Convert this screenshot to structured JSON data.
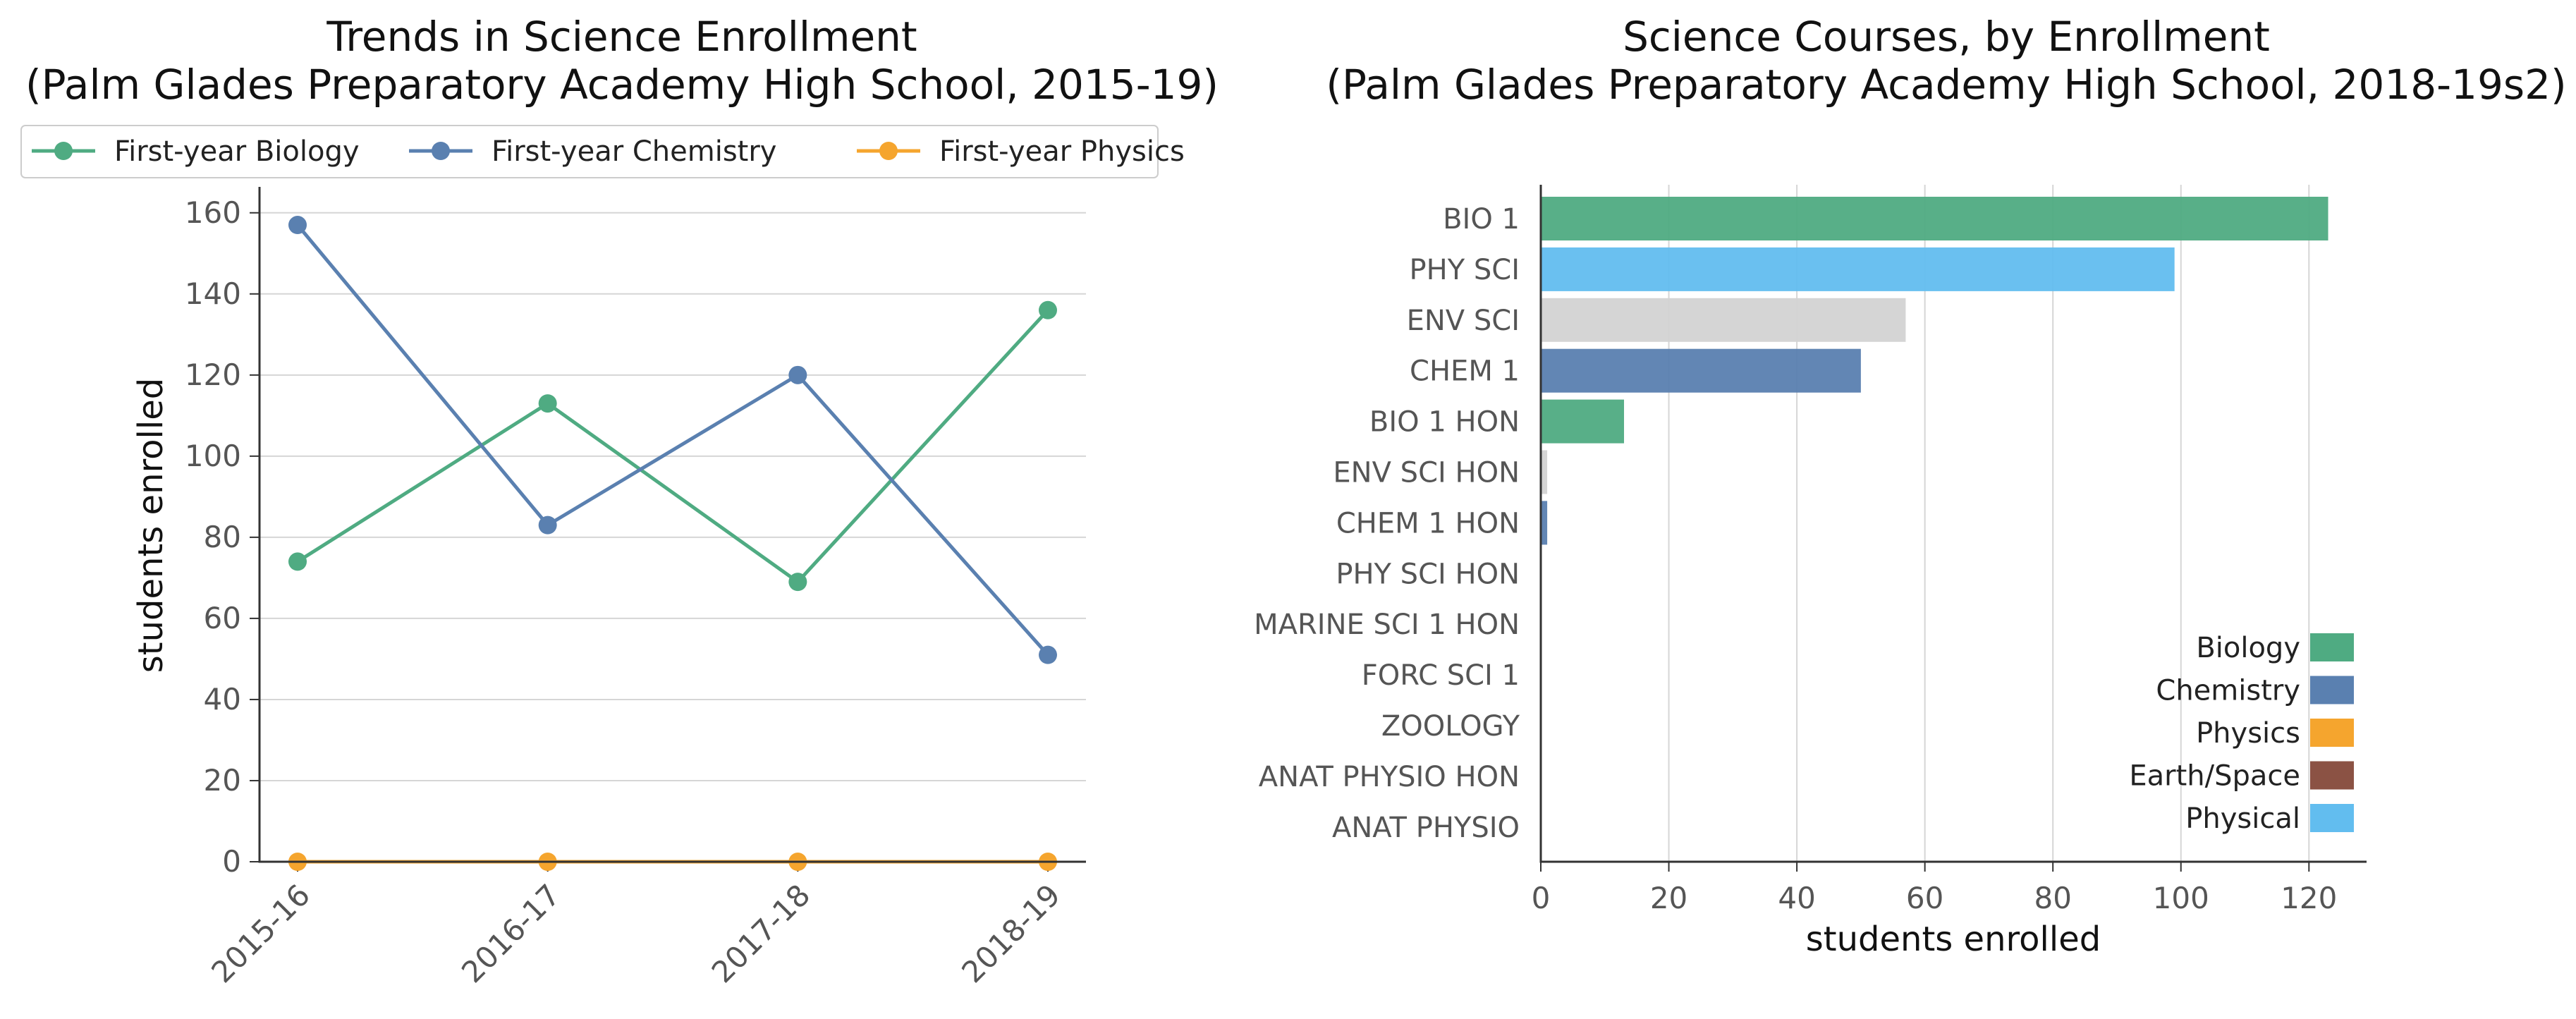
{
  "chart_data": [
    {
      "type": "line",
      "title": "Trends in Science Enrollment",
      "subtitle": "(Palm Glades Preparatory Academy High School, 2015-19)",
      "xlabel": "",
      "ylabel": "students enrolled",
      "categories": [
        "2015-16",
        "2016-17",
        "2017-18",
        "2018-19"
      ],
      "ylim": [
        0,
        165
      ],
      "yticks": [
        0,
        20,
        40,
        60,
        80,
        100,
        120,
        140,
        160
      ],
      "grid": "horizontal",
      "legend": "top",
      "series": [
        {
          "name": "First-year Biology",
          "color": "#4fab82",
          "values": [
            74,
            113,
            69,
            136
          ]
        },
        {
          "name": "First-year Chemistry",
          "color": "#5a80b0",
          "values": [
            157,
            83,
            120,
            51
          ]
        },
        {
          "name": "First-year Physics",
          "color": "#f5a52e",
          "values": [
            0,
            0,
            0,
            0
          ]
        }
      ]
    },
    {
      "type": "bar",
      "orientation": "horizontal",
      "title": "Science Courses, by Enrollment",
      "subtitle": "(Palm Glades Preparatory Academy High School, 2018-19s2)",
      "xlabel": "students enrolled",
      "ylabel": "",
      "xlim": [
        0,
        129
      ],
      "xticks": [
        0,
        20,
        40,
        60,
        80,
        100,
        120
      ],
      "grid": "vertical",
      "legend": "bottom-right",
      "categories": [
        "BIO 1",
        "PHY SCI",
        "ENV SCI",
        "CHEM 1",
        "BIO 1 HON",
        "ENV SCI HON",
        "CHEM 1 HON",
        "PHY SCI HON",
        "MARINE SCI 1 HON",
        "FORC SCI 1",
        "ZOOLOGY",
        "ANAT PHYSIO HON",
        "ANAT PHYSIO"
      ],
      "values": [
        123,
        99,
        57,
        50,
        13,
        1,
        1,
        0,
        0,
        0,
        0,
        0,
        0
      ],
      "colors": [
        "#4fab82",
        "#62bdef",
        "#d3d3d3",
        "#5a80b0",
        "#4fab82",
        "#d3d3d3",
        "#5a80b0",
        "#62bdef",
        "#4fab82",
        "#4fab82",
        "#4fab82",
        "#4fab82",
        "#4fab82"
      ],
      "legend_entries": [
        {
          "name": "Biology",
          "color": "#4fab82"
        },
        {
          "name": "Chemistry",
          "color": "#5a80b0"
        },
        {
          "name": "Physics",
          "color": "#f5a52e"
        },
        {
          "name": "Earth/Space",
          "color": "#8b5244"
        },
        {
          "name": "Physical",
          "color": "#62bdef"
        }
      ]
    }
  ]
}
